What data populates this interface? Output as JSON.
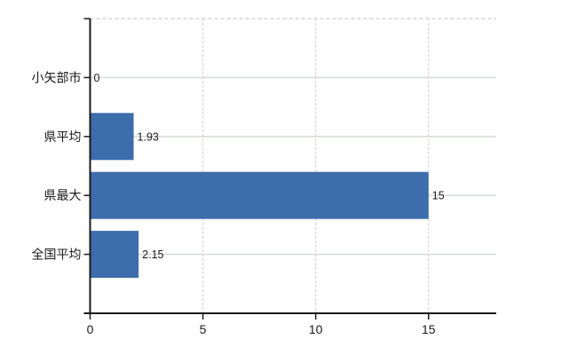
{
  "chart_data": {
    "type": "bar",
    "orientation": "horizontal",
    "title": "",
    "xlabel": "",
    "ylabel": "",
    "categories": [
      "小矢部市",
      "県平均",
      "県最大",
      "全国平均"
    ],
    "values": [
      0,
      1.93,
      15,
      2.15
    ],
    "value_labels": [
      "0",
      "1.93",
      "15",
      "2.15"
    ],
    "xlim": [
      0,
      18
    ],
    "xticks": [
      0,
      5,
      10,
      15
    ],
    "xtick_labels": [
      "0",
      "5",
      "10",
      "15"
    ],
    "grid": true,
    "legend": "none",
    "colors": {
      "bar": "#3d6dab",
      "axis": "#1a1a1a",
      "text": "#1a1a1a",
      "h_gridline": "#d4dcd4",
      "v_gridline": "#d5d5d5",
      "top_border": "#cccccc",
      "background": "#ffffff"
    }
  }
}
